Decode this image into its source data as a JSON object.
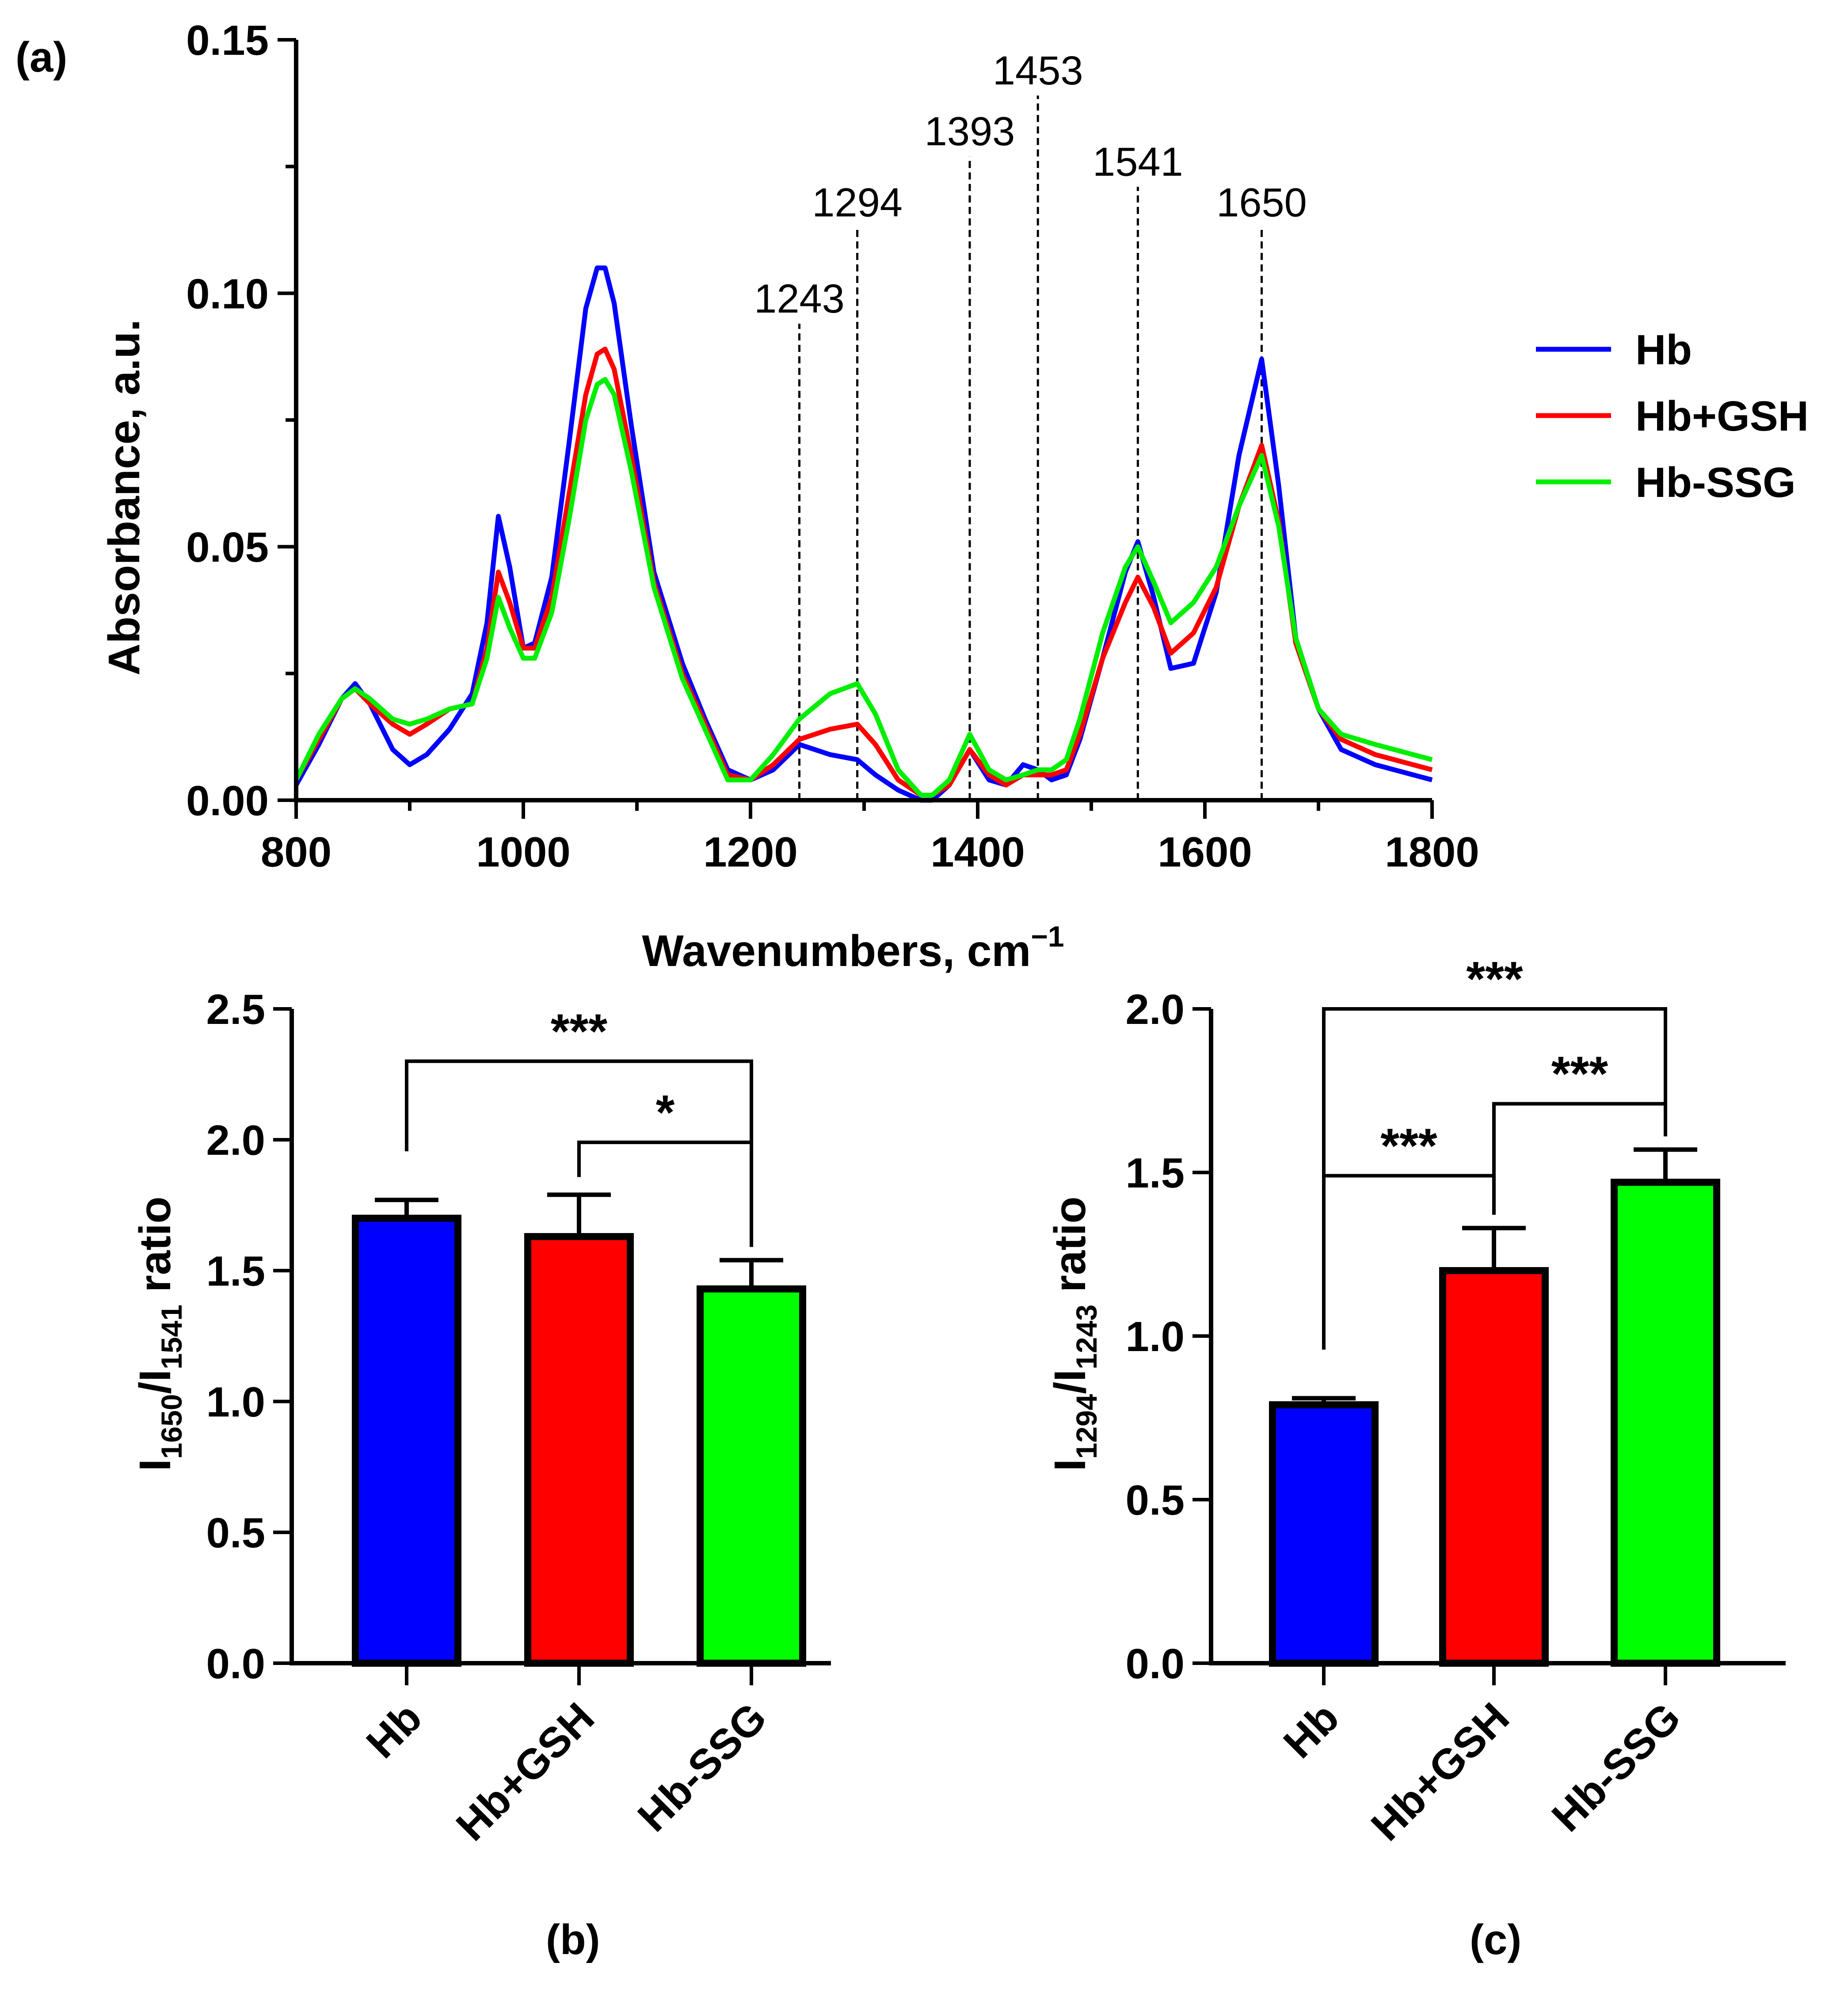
{
  "panel_labels": {
    "a": "(a)",
    "b": "(b)",
    "c": "(c)"
  },
  "chart_data": [
    {
      "type": "line",
      "panel": "(a)",
      "xlabel": "Wavenumbers, cm",
      "xlabel_sup": "−1",
      "ylabel": "Absorbance, a.u.",
      "xlim": [
        800,
        1800
      ],
      "ylim": [
        0,
        0.15
      ],
      "xticks": [
        {
          "v": 800,
          "label": "800"
        },
        {
          "v": 1000,
          "label": "1000"
        },
        {
          "v": 1200,
          "label": "1200"
        },
        {
          "v": 1400,
          "label": "1400"
        },
        {
          "v": 1600,
          "label": "1600"
        },
        {
          "v": 1800,
          "label": "1800"
        }
      ],
      "yticks": [
        {
          "v": 0,
          "label": "0.00"
        },
        {
          "v": 0.05,
          "label": "0.05"
        },
        {
          "v": 0.1,
          "label": "0.10"
        },
        {
          "v": 0.15,
          "label": "0.15"
        }
      ],
      "legend_position": "right",
      "peak_markers": [
        {
          "x": 1243,
          "label": "1243",
          "top": 0.094
        },
        {
          "x": 1294,
          "label": "1294",
          "top": 0.113
        },
        {
          "x": 1393,
          "label": "1393",
          "top": 0.127
        },
        {
          "x": 1453,
          "label": "1453",
          "top": 0.139
        },
        {
          "x": 1541,
          "label": "1541",
          "top": 0.121
        },
        {
          "x": 1650,
          "label": "1650",
          "top": 0.113
        }
      ],
      "series": [
        {
          "name": "Hb",
          "color": "#0000ff",
          "x": [
            800,
            820,
            840,
            852,
            865,
            885,
            900,
            915,
            935,
            955,
            968,
            978,
            988,
            1000,
            1010,
            1025,
            1040,
            1055,
            1065,
            1072,
            1080,
            1095,
            1115,
            1140,
            1160,
            1180,
            1200,
            1220,
            1243,
            1270,
            1294,
            1310,
            1330,
            1350,
            1360,
            1375,
            1393,
            1410,
            1425,
            1440,
            1453,
            1465,
            1478,
            1490,
            1510,
            1530,
            1541,
            1555,
            1570,
            1590,
            1610,
            1630,
            1650,
            1665,
            1680,
            1700,
            1720,
            1750,
            1800
          ],
          "y": [
            0.003,
            0.011,
            0.02,
            0.023,
            0.019,
            0.01,
            0.007,
            0.009,
            0.014,
            0.021,
            0.035,
            0.056,
            0.046,
            0.03,
            0.031,
            0.044,
            0.07,
            0.097,
            0.105,
            0.105,
            0.098,
            0.074,
            0.045,
            0.027,
            0.016,
            0.006,
            0.004,
            0.006,
            0.011,
            0.009,
            0.008,
            0.005,
            0.002,
            0.0,
            0.0,
            0.003,
            0.01,
            0.004,
            0.003,
            0.007,
            0.006,
            0.004,
            0.005,
            0.012,
            0.028,
            0.045,
            0.051,
            0.04,
            0.026,
            0.027,
            0.041,
            0.068,
            0.087,
            0.062,
            0.032,
            0.018,
            0.01,
            0.007,
            0.004
          ]
        },
        {
          "name": "Hb+GSH",
          "color": "#ff0000",
          "x": [
            800,
            820,
            840,
            852,
            865,
            885,
            900,
            915,
            935,
            955,
            968,
            978,
            988,
            1000,
            1010,
            1025,
            1040,
            1055,
            1065,
            1072,
            1080,
            1095,
            1115,
            1140,
            1160,
            1180,
            1200,
            1220,
            1243,
            1270,
            1294,
            1310,
            1330,
            1350,
            1360,
            1375,
            1393,
            1410,
            1425,
            1440,
            1453,
            1465,
            1478,
            1490,
            1510,
            1530,
            1541,
            1555,
            1570,
            1590,
            1610,
            1630,
            1650,
            1665,
            1680,
            1700,
            1720,
            1750,
            1800
          ],
          "y": [
            0.004,
            0.012,
            0.02,
            0.022,
            0.019,
            0.015,
            0.013,
            0.015,
            0.018,
            0.019,
            0.03,
            0.045,
            0.039,
            0.03,
            0.03,
            0.04,
            0.06,
            0.08,
            0.088,
            0.089,
            0.085,
            0.068,
            0.043,
            0.025,
            0.015,
            0.005,
            0.004,
            0.007,
            0.012,
            0.014,
            0.015,
            0.011,
            0.004,
            0.001,
            0.001,
            0.003,
            0.01,
            0.005,
            0.003,
            0.005,
            0.005,
            0.005,
            0.006,
            0.013,
            0.028,
            0.039,
            0.044,
            0.038,
            0.029,
            0.033,
            0.042,
            0.058,
            0.07,
            0.055,
            0.031,
            0.018,
            0.012,
            0.009,
            0.006
          ]
        },
        {
          "name": "Hb-SSG",
          "color": "#00ee00",
          "x": [
            800,
            820,
            840,
            852,
            865,
            885,
            900,
            915,
            935,
            955,
            968,
            978,
            988,
            1000,
            1010,
            1025,
            1040,
            1055,
            1065,
            1072,
            1080,
            1095,
            1115,
            1140,
            1160,
            1180,
            1200,
            1220,
            1243,
            1270,
            1294,
            1310,
            1330,
            1350,
            1360,
            1375,
            1393,
            1410,
            1425,
            1440,
            1453,
            1465,
            1478,
            1490,
            1510,
            1530,
            1541,
            1555,
            1570,
            1590,
            1610,
            1630,
            1650,
            1665,
            1680,
            1700,
            1720,
            1750,
            1800
          ],
          "y": [
            0.004,
            0.013,
            0.02,
            0.022,
            0.02,
            0.016,
            0.015,
            0.016,
            0.018,
            0.019,
            0.028,
            0.04,
            0.034,
            0.028,
            0.028,
            0.037,
            0.055,
            0.075,
            0.082,
            0.083,
            0.08,
            0.065,
            0.042,
            0.024,
            0.014,
            0.004,
            0.004,
            0.009,
            0.016,
            0.021,
            0.023,
            0.017,
            0.006,
            0.001,
            0.001,
            0.004,
            0.013,
            0.006,
            0.004,
            0.005,
            0.006,
            0.006,
            0.008,
            0.016,
            0.033,
            0.046,
            0.05,
            0.043,
            0.035,
            0.039,
            0.046,
            0.058,
            0.068,
            0.054,
            0.032,
            0.018,
            0.013,
            0.011,
            0.008
          ]
        }
      ]
    },
    {
      "type": "bar",
      "panel": "(b)",
      "ylabel_parts": [
        {
          "t": "I",
          "sub": false
        },
        {
          "t": "1650",
          "sub": true
        },
        {
          "t": "/I",
          "sub": false
        },
        {
          "t": "1541",
          "sub": true
        },
        {
          "t": " ratio",
          "sub": false
        }
      ],
      "ylim": [
        0,
        2.5
      ],
      "yticks": [
        {
          "v": 0,
          "label": "0.0"
        },
        {
          "v": 0.5,
          "label": "0.5"
        },
        {
          "v": 1.0,
          "label": "1.0"
        },
        {
          "v": 1.5,
          "label": "1.5"
        },
        {
          "v": 2.0,
          "label": "2.0"
        },
        {
          "v": 2.5,
          "label": "2.5"
        }
      ],
      "categories": [
        "Hb",
        "Hb+GSH",
        "Hb-SSG"
      ],
      "values": [
        1.7,
        1.63,
        1.43
      ],
      "errors": [
        0.07,
        0.16,
        0.11
      ],
      "colors": [
        "#0000ff",
        "#ff0000",
        "#00ff00"
      ],
      "significance": [
        {
          "from": 0,
          "to": 2,
          "level": 2.3,
          "label": "***"
        },
        {
          "from": 1,
          "to": 2,
          "level": 1.99,
          "label": "*"
        }
      ]
    },
    {
      "type": "bar",
      "panel": "(c)",
      "ylabel_parts": [
        {
          "t": "I",
          "sub": false
        },
        {
          "t": "1294",
          "sub": true
        },
        {
          "t": "/I",
          "sub": false
        },
        {
          "t": "1243",
          "sub": true
        },
        {
          "t": " ratio",
          "sub": false
        }
      ],
      "ylim": [
        0,
        2.0
      ],
      "yticks": [
        {
          "v": 0,
          "label": "0.0"
        },
        {
          "v": 0.5,
          "label": "0.5"
        },
        {
          "v": 1.0,
          "label": "1.0"
        },
        {
          "v": 1.5,
          "label": "1.5"
        },
        {
          "v": 2.0,
          "label": "2.0"
        }
      ],
      "categories": [
        "Hb",
        "Hb+GSH",
        "Hb-SSG"
      ],
      "values": [
        0.79,
        1.2,
        1.47
      ],
      "errors": [
        0.02,
        0.13,
        0.1
      ],
      "colors": [
        "#0000ff",
        "#ff0000",
        "#00ff00"
      ],
      "significance": [
        {
          "from": 0,
          "to": 2,
          "level": 2.0,
          "label": "***"
        },
        {
          "from": 1,
          "to": 2,
          "level": 1.71,
          "label": "***"
        },
        {
          "from": 0,
          "to": 1,
          "level": 1.49,
          "label": "***"
        }
      ]
    }
  ]
}
